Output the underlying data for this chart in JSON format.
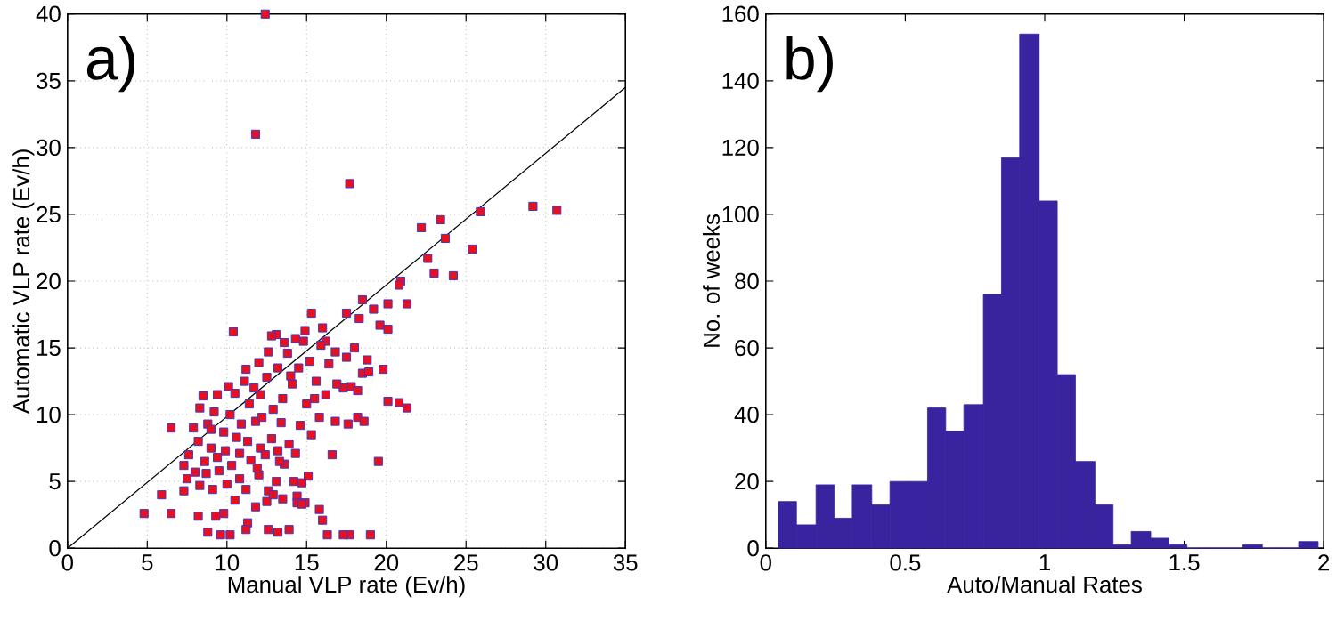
{
  "chart_data": [
    {
      "type": "scatter",
      "annotations": [
        "a)"
      ],
      "xlabel": "Manual VLP rate (Ev/h)",
      "ylabel": "Automatic VLP rate (Ev/h)",
      "xlim": [
        0,
        35
      ],
      "ylim": [
        0,
        40
      ],
      "xticks": [
        0,
        5,
        10,
        15,
        20,
        25,
        30,
        35
      ],
      "yticks": [
        0,
        5,
        10,
        15,
        20,
        25,
        30,
        35,
        40
      ],
      "grid": true,
      "series": [
        {
          "type": "scatter",
          "marker": "square",
          "color": "#e8101e",
          "x": [
            12.4,
            11.8,
            17.7,
            29.2,
            30.7,
            25.9,
            23.4,
            22.2,
            23.7,
            22.6,
            25.4,
            23,
            24.2,
            20.9,
            20.8,
            18.5,
            20.1,
            21.3,
            19.2,
            17.5,
            18.3,
            19.6,
            20.1,
            15.3,
            10.4,
            19.8,
            20.1,
            20.8,
            21.3,
            19.5,
            16.6,
            19,
            17.7,
            17.3,
            16.3,
            15.8,
            16,
            15.1,
            14.4,
            14.4,
            13.9,
            13.2,
            12.6,
            11.3,
            11.2,
            10.2,
            9.6,
            8.8,
            4.8,
            6.5,
            5.9,
            6.5,
            7.3,
            8.2,
            9.3,
            9.8,
            10.5,
            11.8,
            12.5,
            7.3,
            7.5,
            8,
            8.3,
            8.7,
            9.1,
            9.5,
            10,
            10.8,
            11.2,
            12,
            12.6,
            13.1,
            13.6,
            14.2,
            14.7,
            7.6,
            8.2,
            8.6,
            9,
            9.4,
            9.9,
            10.3,
            10.8,
            11.5,
            12.1,
            12.8,
            13.2,
            13.9,
            14.3,
            7.9,
            8.3,
            8.5,
            8.8,
            9.2,
            9.4,
            9.8,
            10.2,
            10.5,
            10.9,
            11.1,
            11.4,
            11.8,
            12.1,
            12.5,
            12.9,
            13.2,
            13.5,
            13.8,
            14.1,
            14.5,
            14.8,
            15.2,
            15.6,
            16,
            16.4,
            16.8,
            17.3,
            17.8,
            17.5,
            18,
            18.2,
            18.5,
            18.8,
            18.9,
            16.8,
            17.6,
            18.2,
            18.6,
            15.8,
            15.3,
            14.6,
            13.4,
            12.2,
            15,
            16.2,
            14,
            12.6,
            13.1,
            13.6,
            14.3,
            11.7,
            10.1,
            15.5,
            16.9,
            9,
            10.6,
            11.3,
            12.4,
            13.3,
            11.2,
            12,
            12.8,
            14.9,
            16.2,
            15.9,
            11.9,
            12.9,
            13.5,
            14.9,
            14.7
          ],
          "values": [
            40,
            31,
            27.3,
            25.6,
            25.3,
            25.2,
            24.6,
            24,
            23.2,
            21.7,
            22.4,
            20.6,
            20.4,
            20,
            19.7,
            18.6,
            18.3,
            18.3,
            17.9,
            17.6,
            17.2,
            16.7,
            16.4,
            17.6,
            16.2,
            13.4,
            11,
            10.9,
            10.5,
            6.5,
            7,
            1,
            1,
            1,
            1,
            2.9,
            2.1,
            5.4,
            3.9,
            3.4,
            1.4,
            1.2,
            1.4,
            1.9,
            1.4,
            1,
            1,
            1.2,
            2.6,
            2.6,
            4,
            9,
            4.3,
            2.4,
            2.4,
            2.6,
            3.6,
            3.1,
            3.5,
            6.2,
            5.2,
            5.7,
            4.7,
            5.6,
            4.4,
            5.8,
            4.8,
            5.2,
            4.4,
            5.5,
            4.3,
            5,
            6.3,
            5,
            4.9,
            7,
            8,
            6.5,
            7.5,
            6.8,
            7.3,
            6.2,
            7.1,
            6.6,
            7.5,
            8.2,
            7.3,
            7.8,
            7.1,
            9,
            10.5,
            11.4,
            9.3,
            10.2,
            11.5,
            8.7,
            10,
            11.6,
            9.3,
            12.5,
            10.8,
            9.5,
            11.5,
            12.8,
            10.4,
            13.5,
            11.2,
            14.6,
            12.3,
            13.5,
            15.5,
            14,
            12.5,
            16.5,
            13.8,
            14.7,
            12,
            12.1,
            14.3,
            15,
            11.8,
            13.1,
            14.1,
            13.2,
            9.5,
            9.3,
            9.8,
            9.5,
            9.8,
            8.5,
            9.2,
            9.4,
            9.8,
            10.8,
            11.5,
            12.9,
            14.7,
            16,
            15.4,
            15.7,
            12,
            12.1,
            11.2,
            12.3,
            8.9,
            8.3,
            8,
            7,
            6.5,
            13.4,
            13.9,
            15.9,
            16.3,
            15.5,
            15.2,
            6,
            4,
            3.7,
            3.4,
            3.3
          ]
        },
        {
          "type": "line",
          "color": "#000000",
          "x": [
            0,
            35
          ],
          "values": [
            0,
            34.5
          ]
        }
      ]
    },
    {
      "type": "histogram",
      "annotations": [
        "b)"
      ],
      "xlabel": "Auto/Manual Rates",
      "ylabel": "No. of weeks",
      "xlim": [
        0,
        2
      ],
      "ylim": [
        0,
        160
      ],
      "xticks": [
        0,
        0.5,
        1,
        1.5,
        2
      ],
      "yticks": [
        0,
        20,
        40,
        60,
        80,
        100,
        120,
        140,
        160
      ],
      "color": "#3a239e",
      "bins": [
        0.045,
        0.11,
        0.18,
        0.245,
        0.31,
        0.38,
        0.445,
        0.51,
        0.58,
        0.645,
        0.71,
        0.78,
        0.845,
        0.91,
        0.98,
        1.045,
        1.11,
        1.18,
        1.245,
        1.31,
        1.38,
        1.445,
        1.51,
        1.58,
        1.645,
        1.71,
        1.78,
        1.845,
        1.91,
        1.98
      ],
      "values": [
        14,
        7,
        19,
        9,
        19,
        13,
        20,
        20,
        42,
        35,
        43,
        76,
        117,
        154,
        104,
        52,
        26,
        13,
        1,
        5,
        3,
        1,
        0,
        0,
        0,
        1,
        0,
        0,
        2
      ]
    }
  ]
}
